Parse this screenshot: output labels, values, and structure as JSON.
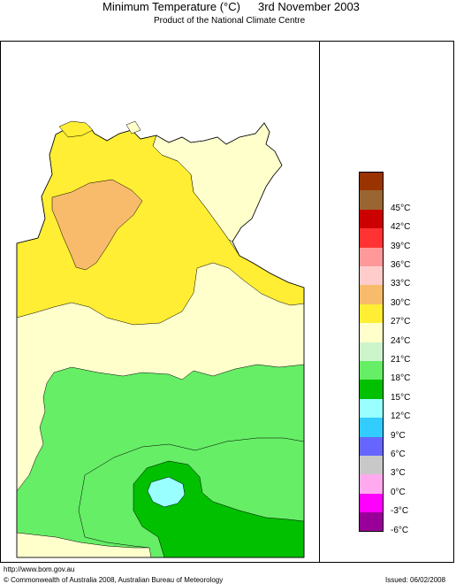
{
  "title": {
    "main": "Minimum Temperature (°C)",
    "date": "3rd November 2003",
    "subtitle": "Product of the National Climate Centre"
  },
  "map": {
    "region": "Northern Territory",
    "colors": {
      "bg": "#ffffff",
      "band_15_18": "#00c000",
      "band_18_21": "#66ee66",
      "band_21_24": "#ccf5cc",
      "band_24_27": "#ffffcc",
      "band_27_30": "#ffee33",
      "band_30_33": "#f7bb6b",
      "band_9_12": "#99ffff"
    }
  },
  "legend": {
    "items": [
      {
        "label": "",
        "color": "#993300"
      },
      {
        "label": "45°C",
        "color": "#996633"
      },
      {
        "label": "42°C",
        "color": "#cc0000"
      },
      {
        "label": "39°C",
        "color": "#ff3333"
      },
      {
        "label": "36°C",
        "color": "#ff9999"
      },
      {
        "label": "33°C",
        "color": "#ffcccc"
      },
      {
        "label": "30°C",
        "color": "#f7bb6b"
      },
      {
        "label": "27°C",
        "color": "#ffee33"
      },
      {
        "label": "24°C",
        "color": "#ffffcc"
      },
      {
        "label": "21°C",
        "color": "#ccf5cc"
      },
      {
        "label": "18°C",
        "color": "#66ee66"
      },
      {
        "label": "15°C",
        "color": "#00c000"
      },
      {
        "label": "12°C",
        "color": "#99ffff"
      },
      {
        "label": "9°C",
        "color": "#33ccff"
      },
      {
        "label": "6°C",
        "color": "#6666ff"
      },
      {
        "label": "3°C",
        "color": "#c8c8c8"
      },
      {
        "label": "0°C",
        "color": "#ffaaee"
      },
      {
        "label": "-3°C",
        "color": "#ff00ff"
      },
      {
        "label": "-6°C",
        "color": "#990099"
      }
    ]
  },
  "footer": {
    "url": "http://www.bom.gov.au",
    "copyright": "© Commonwealth of Australia 2008, Australian Bureau of Meteorology",
    "issued": "Issued: 06/02/2008"
  }
}
